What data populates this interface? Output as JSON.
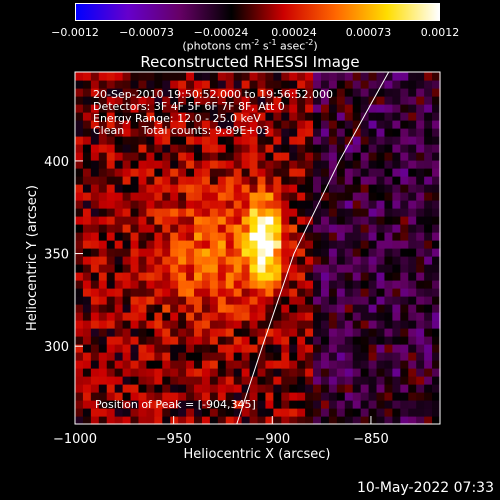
{
  "colorbar": {
    "ticks": [
      "-0.0012",
      "-0.00073",
      "-0.00024",
      "0.00024",
      "0.00073",
      "0.0012"
    ],
    "tick_values": [
      -0.0012,
      -0.00073,
      -0.00024,
      0.00024,
      0.00073,
      0.0012
    ],
    "range": [
      -0.0012,
      0.0012
    ],
    "unit_parts": [
      "(photons cm",
      "-2",
      " s",
      "-1",
      " asec",
      "-2",
      ")"
    ],
    "colormap": [
      "#0000ff",
      "#6600cc",
      "#660066",
      "#000000",
      "#cc0000",
      "#ff6600",
      "#ffdd00",
      "#ffffff"
    ]
  },
  "title": "Reconstructed RHESSI Image",
  "info_lines": [
    "20-Sep-2010 19:50:52.000 to 19:56:52.000",
    "Detectors: 3F 4F 5F 6F 7F 8F, Att 0",
    "Energy Range: 12.0 - 25.0 keV",
    "Clean     Total counts: 9.89E+03"
  ],
  "peak_label": "Position of Peak = [-904,345]",
  "timestamp": "10-May-2022 07:33",
  "chart_data": {
    "type": "heatmap",
    "title": "Reconstructed RHESSI Image",
    "xlabel": "Heliocentric X (arcsec)",
    "ylabel": "Heliocentric Y (arcsec)",
    "xlim": [
      -1000,
      -815
    ],
    "ylim": [
      258,
      448
    ],
    "x_ticks": [
      -1000,
      -950,
      -900,
      -850
    ],
    "x_tick_labels": [
      "−1000",
      "−950",
      "−900",
      "−850"
    ],
    "y_ticks": [
      300,
      350,
      400
    ],
    "y_tick_labels": [
      "300",
      "350",
      "400"
    ],
    "peak": [
      -904,
      345
    ],
    "peak_value": 0.0012,
    "limb_points": [
      [
        -918,
        258
      ],
      [
        -905,
        300
      ],
      [
        -889,
        350
      ],
      [
        -866,
        400
      ],
      [
        -841,
        448
      ]
    ]
  }
}
